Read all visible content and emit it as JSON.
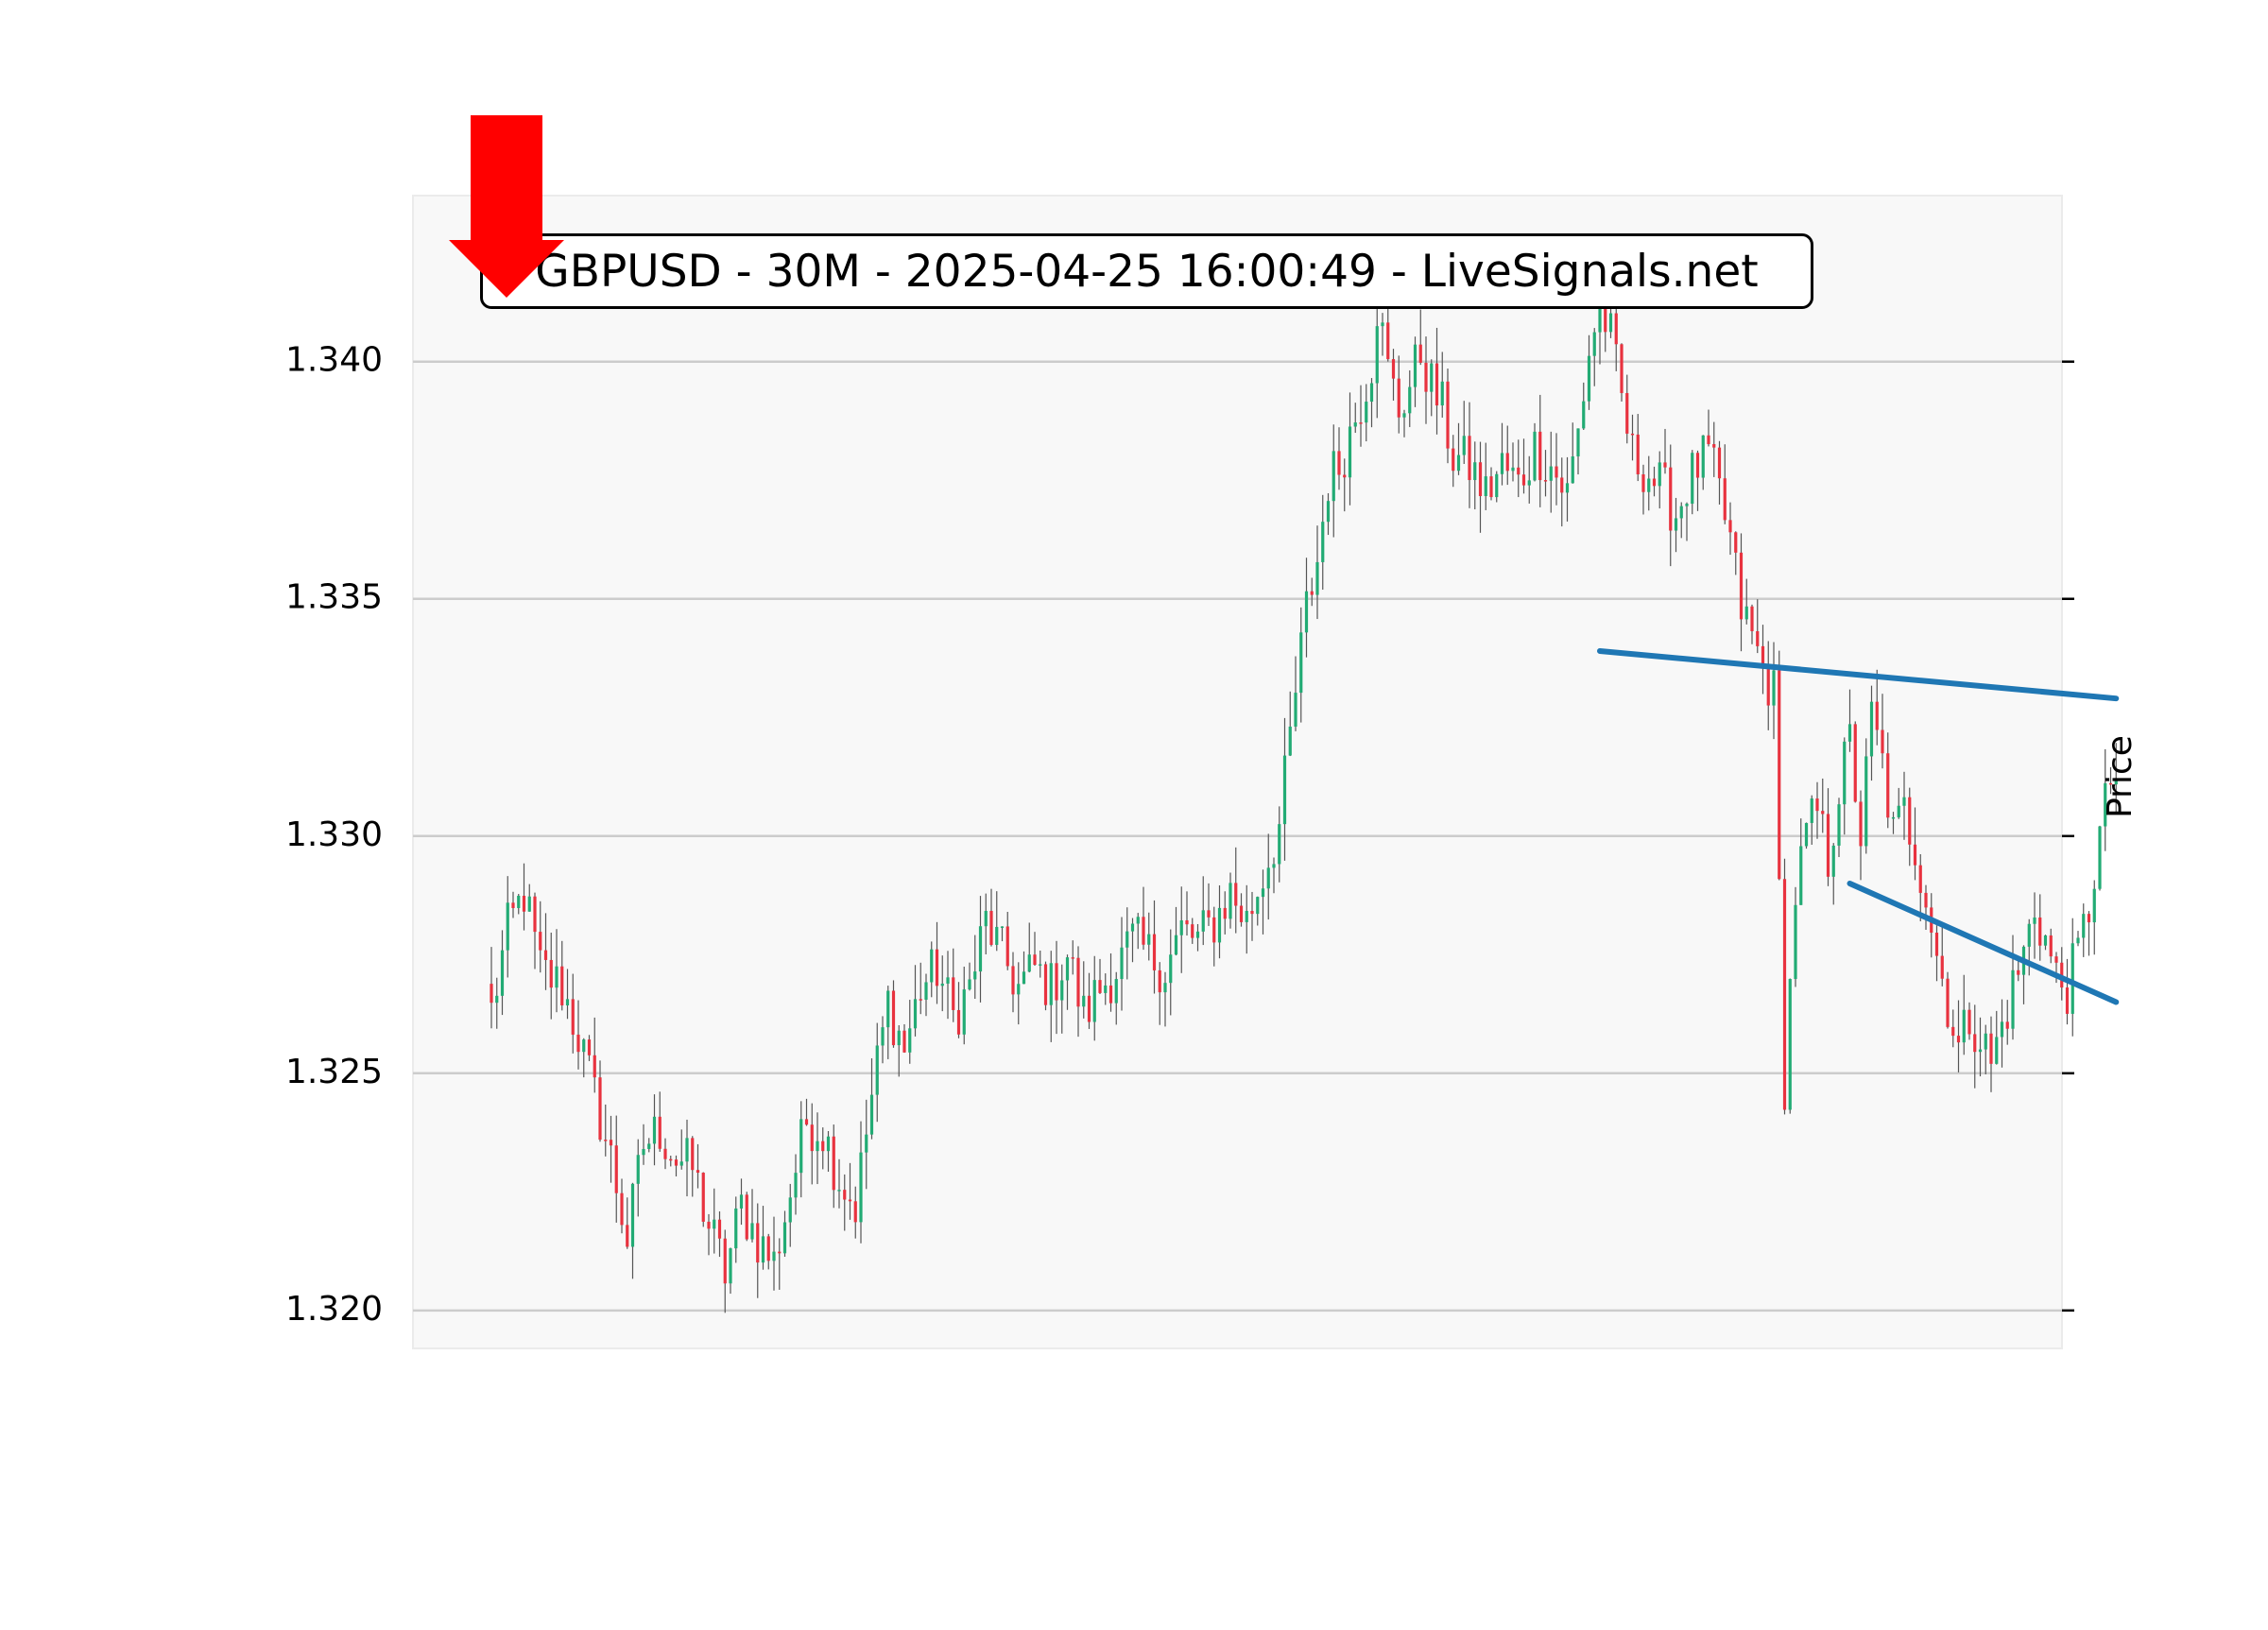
{
  "chart_data": {
    "type": "candlestick",
    "title": "GBPUSD - 30M - 2025-04-25 16:00:49 - LiveSignals.net",
    "xlabel": "",
    "ylabel": "Price",
    "ylim": [
      1.3192,
      1.3435
    ],
    "yticks": [
      "1.320",
      "1.325",
      "1.330",
      "1.335",
      "1.340"
    ],
    "y_axis_side": "right tick marks, left tick labels",
    "grid": "horizontal",
    "up_color": "#22ab74",
    "down_color": "#e8323f",
    "wick_color": "#555555",
    "background_color": "#f8f8f8",
    "gridline_color": "#cccccc",
    "candle_count": 300,
    "anchors": [
      [
        0,
        1.3263
      ],
      [
        3,
        1.328
      ],
      [
        6,
        1.3288
      ],
      [
        9,
        1.3272
      ],
      [
        13,
        1.3268
      ],
      [
        16,
        1.3258
      ],
      [
        19,
        1.3245
      ],
      [
        22,
        1.3232
      ],
      [
        25,
        1.3215
      ],
      [
        28,
        1.3235
      ],
      [
        31,
        1.3238
      ],
      [
        34,
        1.3232
      ],
      [
        37,
        1.323
      ],
      [
        40,
        1.3218
      ],
      [
        43,
        1.3208
      ],
      [
        46,
        1.3222
      ],
      [
        49,
        1.3215
      ],
      [
        52,
        1.321
      ],
      [
        55,
        1.3225
      ],
      [
        58,
        1.324
      ],
      [
        61,
        1.3238
      ],
      [
        64,
        1.3228
      ],
      [
        67,
        1.3222
      ],
      [
        70,
        1.3245
      ],
      [
        73,
        1.3265
      ],
      [
        76,
        1.3255
      ],
      [
        79,
        1.3268
      ],
      [
        82,
        1.3272
      ],
      [
        85,
        1.3262
      ],
      [
        88,
        1.3268
      ],
      [
        91,
        1.3282
      ],
      [
        94,
        1.3275
      ],
      [
        97,
        1.3268
      ],
      [
        100,
        1.3272
      ],
      [
        103,
        1.3268
      ],
      [
        106,
        1.3275
      ],
      [
        109,
        1.3262
      ],
      [
        112,
        1.3268
      ],
      [
        115,
        1.3272
      ],
      [
        118,
        1.3278
      ],
      [
        121,
        1.3275
      ],
      [
        124,
        1.3272
      ],
      [
        127,
        1.328
      ],
      [
        130,
        1.3278
      ],
      [
        133,
        1.3282
      ],
      [
        136,
        1.3288
      ],
      [
        139,
        1.3282
      ],
      [
        142,
        1.3292
      ],
      [
        145,
        1.3302
      ],
      [
        148,
        1.333
      ],
      [
        150,
        1.3348
      ],
      [
        152,
        1.3358
      ],
      [
        154,
        1.3375
      ],
      [
        156,
        1.3378
      ],
      [
        158,
        1.3385
      ],
      [
        160,
        1.3392
      ],
      [
        162,
        1.34
      ],
      [
        163,
        1.3412
      ],
      [
        165,
        1.3398
      ],
      [
        167,
        1.339
      ],
      [
        169,
        1.3395
      ],
      [
        171,
        1.3402
      ],
      [
        173,
        1.3395
      ],
      [
        175,
        1.339
      ],
      [
        177,
        1.338
      ],
      [
        180,
        1.3378
      ],
      [
        183,
        1.3372
      ],
      [
        186,
        1.3378
      ],
      [
        189,
        1.3374
      ],
      [
        192,
        1.3382
      ],
      [
        195,
        1.3378
      ],
      [
        198,
        1.3372
      ],
      [
        200,
        1.3385
      ],
      [
        202,
        1.3402
      ],
      [
        204,
        1.3412
      ],
      [
        206,
        1.3405
      ],
      [
        208,
        1.3392
      ],
      [
        210,
        1.338
      ],
      [
        212,
        1.3378
      ],
      [
        214,
        1.3375
      ],
      [
        216,
        1.3372
      ],
      [
        218,
        1.3368
      ],
      [
        220,
        1.3374
      ],
      [
        222,
        1.3378
      ],
      [
        224,
        1.338
      ],
      [
        226,
        1.3372
      ],
      [
        228,
        1.3362
      ],
      [
        230,
        1.3348
      ],
      [
        232,
        1.3342
      ],
      [
        234,
        1.3335
      ],
      [
        236,
        1.333
      ],
      [
        237,
        1.3288
      ],
      [
        238,
        1.3248
      ],
      [
        239,
        1.3268
      ],
      [
        240,
        1.3288
      ],
      [
        242,
        1.33
      ],
      [
        244,
        1.3305
      ],
      [
        246,
        1.3295
      ],
      [
        248,
        1.331
      ],
      [
        250,
        1.332
      ],
      [
        252,
        1.33
      ],
      [
        254,
        1.3325
      ],
      [
        256,
        1.3315
      ],
      [
        258,
        1.33
      ],
      [
        260,
        1.3305
      ],
      [
        262,
        1.3298
      ],
      [
        264,
        1.3288
      ],
      [
        266,
        1.3275
      ],
      [
        268,
        1.3265
      ],
      [
        270,
        1.3255
      ],
      [
        272,
        1.3262
      ],
      [
        274,
        1.3258
      ],
      [
        276,
        1.3252
      ],
      [
        278,
        1.326
      ],
      [
        280,
        1.3268
      ],
      [
        282,
        1.3275
      ],
      [
        284,
        1.3285
      ],
      [
        286,
        1.3278
      ],
      [
        288,
        1.327
      ],
      [
        290,
        1.3268
      ],
      [
        292,
        1.3275
      ],
      [
        294,
        1.3285
      ],
      [
        296,
        1.33
      ],
      [
        298,
        1.3312
      ]
    ],
    "trend_lines": [
      {
        "name": "resistance",
        "x1": 204,
        "y1": 1.3339,
        "x2": 299,
        "y2": 1.3329,
        "color": "#1f77b4"
      },
      {
        "name": "support",
        "x1": 250,
        "y1": 1.329,
        "x2": 299,
        "y2": 1.3265,
        "color": "#1f77b4"
      }
    ],
    "signal": {
      "direction": "down",
      "color": "#ff0000"
    }
  }
}
